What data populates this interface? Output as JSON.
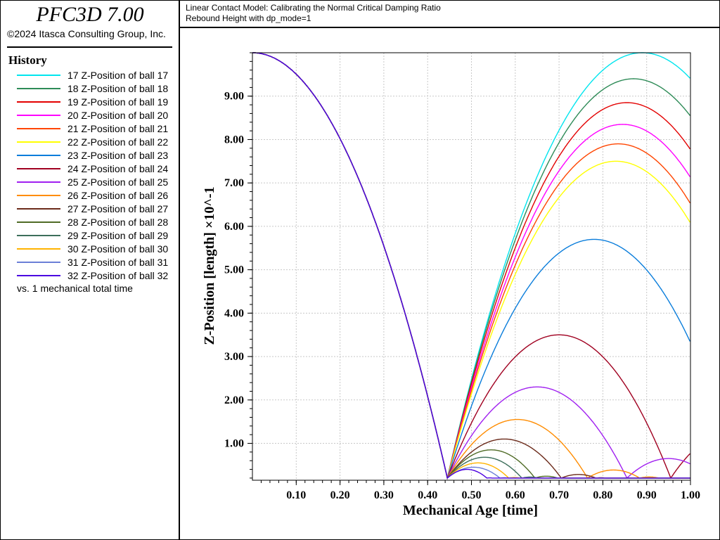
{
  "app": {
    "title": "PFC3D 7.00",
    "copyright": "©2024 Itasca Consulting Group, Inc."
  },
  "legend": {
    "heading": "History",
    "vs_label": "vs. 1 mechanical total time",
    "items": [
      {
        "label": "17 Z-Position of ball 17",
        "color": "#00e5ee"
      },
      {
        "label": "18 Z-Position of ball 18",
        "color": "#2e8b57"
      },
      {
        "label": "19 Z-Position of ball 19",
        "color": "#e30000"
      },
      {
        "label": "20 Z-Position of ball 20",
        "color": "#ff00ff"
      },
      {
        "label": "21 Z-Position of ball 21",
        "color": "#ff4500"
      },
      {
        "label": "22 Z-Position of ball 22",
        "color": "#ffff00"
      },
      {
        "label": "23 Z-Position of ball 23",
        "color": "#0a7ddb"
      },
      {
        "label": "24 Z-Position of ball 24",
        "color": "#a00020"
      },
      {
        "label": "25 Z-Position of ball 25",
        "color": "#a020f0"
      },
      {
        "label": "26 Z-Position of ball 26",
        "color": "#ff8c00"
      },
      {
        "label": "27 Z-Position of ball 27",
        "color": "#6b2a1a"
      },
      {
        "label": "28 Z-Position of ball 28",
        "color": "#4f6b26"
      },
      {
        "label": "29 Z-Position of ball 29",
        "color": "#3c6e5a"
      },
      {
        "label": "30 Z-Position of ball 30",
        "color": "#ffb300"
      },
      {
        "label": "31 Z-Position of ball 31",
        "color": "#6b7fd7"
      },
      {
        "label": "32 Z-Position of ball 32",
        "color": "#4b00e0"
      }
    ]
  },
  "chart_header": {
    "title": "Linear Contact Model: Calibrating the Normal Critical Damping Ratio",
    "subtitle": "Rebound Height with dp_mode=1"
  },
  "chart_data": {
    "type": "line",
    "xlabel": "Mechanical Age [time]",
    "ylabel": "Z-Position [length] ×10^-1",
    "xlim": [
      0.0,
      1.0
    ],
    "ylim": [
      0.15,
      10.0
    ],
    "grid": true,
    "x_ticks": [
      "0.10",
      "0.20",
      "0.30",
      "0.40",
      "0.50",
      "0.60",
      "0.70",
      "0.80",
      "0.90",
      "1.00"
    ],
    "y_ticks": [
      "1.00",
      "2.00",
      "3.00",
      "4.00",
      "5.00",
      "6.00",
      "7.00",
      "8.00",
      "9.00"
    ],
    "drop_start": 10.0,
    "floor": 0.2,
    "first_impact_x": 0.445,
    "series": [
      {
        "name": "17 Z-Position of ball 17",
        "peak_x": 0.89,
        "peak_y": 10.0
      },
      {
        "name": "18 Z-Position of ball 18",
        "peak_x": 0.87,
        "peak_y": 9.4
      },
      {
        "name": "19 Z-Position of ball 19",
        "peak_x": 0.855,
        "peak_y": 8.85
      },
      {
        "name": "20 Z-Position of ball 20",
        "peak_x": 0.845,
        "peak_y": 8.35
      },
      {
        "name": "21 Z-Position of ball 21",
        "peak_x": 0.835,
        "peak_y": 7.9
      },
      {
        "name": "22 Z-Position of ball 22",
        "peak_x": 0.83,
        "peak_y": 7.5
      },
      {
        "name": "23 Z-Position of ball 23",
        "peak_x": 0.78,
        "peak_y": 5.7
      },
      {
        "name": "24 Z-Position of ball 24",
        "peak_x": 0.7,
        "peak_y": 3.5
      },
      {
        "name": "25 Z-Position of ball 25",
        "peak_x": 0.65,
        "peak_y": 2.3
      },
      {
        "name": "26 Z-Position of ball 26",
        "peak_x": 0.605,
        "peak_y": 1.55
      },
      {
        "name": "27 Z-Position of ball 27",
        "peak_x": 0.575,
        "peak_y": 1.1
      },
      {
        "name": "28 Z-Position of ball 28",
        "peak_x": 0.545,
        "peak_y": 0.85
      },
      {
        "name": "29 Z-Position of ball 29",
        "peak_x": 0.53,
        "peak_y": 0.68
      },
      {
        "name": "30 Z-Position of ball 30",
        "peak_x": 0.515,
        "peak_y": 0.55
      },
      {
        "name": "31 Z-Position of ball 31",
        "peak_x": 0.505,
        "peak_y": 0.45
      },
      {
        "name": "32 Z-Position of ball 32",
        "peak_x": 0.49,
        "peak_y": 0.4
      }
    ]
  }
}
